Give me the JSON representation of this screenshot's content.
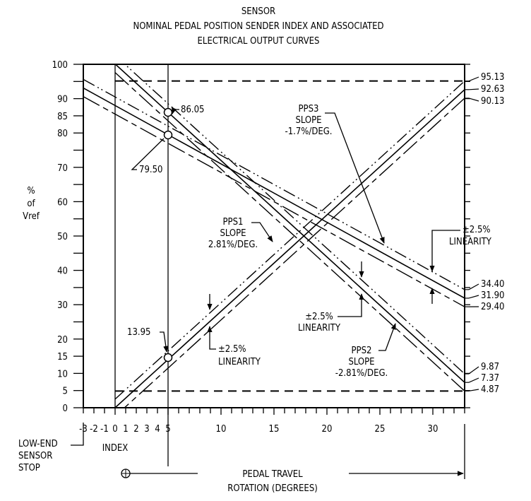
{
  "chart_data": {
    "type": "line",
    "title_lines": [
      "SENSOR",
      "NOMINAL PEDAL POSITION SENDER INDEX AND ASSOCIATED",
      "ELECTRICAL OUTPUT CURVES"
    ],
    "ylabel_lines": [
      "%",
      "of",
      "Vref"
    ],
    "xlabel_lines": [
      "PEDAL TRAVEL",
      "ROTATION (DEGREES)"
    ],
    "xlim": [
      -3,
      33
    ],
    "ylim": [
      0,
      100
    ],
    "x_tick_labels": [
      "-3",
      "-2",
      "-1",
      "0",
      "1",
      "2",
      "3",
      "4",
      "5",
      "10",
      "15",
      "20",
      "25",
      "30"
    ],
    "y_tick_labels": [
      "0",
      "5",
      "10",
      "15",
      "20",
      "30",
      "40",
      "50",
      "60",
      "70",
      "80",
      "85",
      "90",
      "100"
    ],
    "series": [
      {
        "name": "PPS1",
        "x": [
          0,
          33
        ],
        "y": [
          0,
          92.63
        ],
        "upper": [
          2.5,
          95.13
        ],
        "lower": [
          -2.5,
          90.13
        ],
        "slope_text": "2.81%/DEG."
      },
      {
        "name": "PPS2",
        "x": [
          0,
          33
        ],
        "y": [
          100.1,
          7.37
        ],
        "upper": [
          102.6,
          9.87
        ],
        "lower": [
          97.6,
          4.87
        ],
        "slope_text": "-2.81%/DEG."
      },
      {
        "name": "PPS3",
        "x": [
          -3,
          33
        ],
        "y": [
          93.1,
          31.9
        ],
        "upper": [
          95.6,
          34.4
        ],
        "lower": [
          90.6,
          29.4
        ],
        "slope_text": "-1.7%/DEG."
      }
    ],
    "limit_lines": [
      95.13,
      4.87
    ],
    "right_labels": [
      "95.13",
      "92.63",
      "90.13",
      "34.40",
      "31.90",
      "29.40",
      "9.87",
      "7.37",
      "4.87"
    ],
    "point_labels": [
      "86.05",
      "79.50",
      "13.95"
    ],
    "slope_word": "SLOPE",
    "linearity_label": [
      "±2.5%",
      "LINEARITY"
    ],
    "index_label": "INDEX",
    "low_end_label": [
      "LOW-END",
      "SENSOR",
      "STOP"
    ],
    "grid": false
  }
}
